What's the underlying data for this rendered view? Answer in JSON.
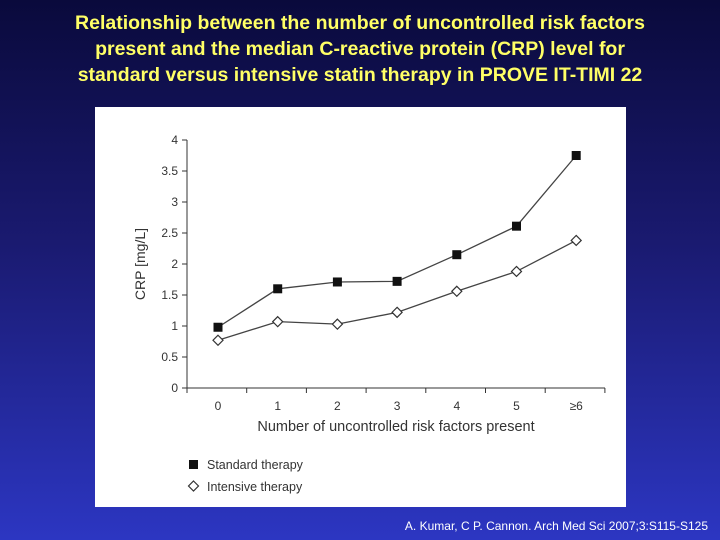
{
  "slide": {
    "title_lines": [
      "Relationship between the number of uncontrolled risk factors",
      "present and the median C-reactive protein (CRP) level for",
      "standard versus intensive statin therapy in PROVE IT-TIMI 22"
    ],
    "citation": "A. Kumar, C P. Cannon. Arch Med Sci 2007;3:S115-S125"
  },
  "colors": {
    "title": "#ffff66",
    "standard_series": "#111111",
    "intensive_series": "#333333"
  },
  "chart_data": {
    "type": "line",
    "title": "",
    "xlabel": "Number of uncontrolled risk factors present",
    "ylabel": "CRP [mg/L]",
    "categories": [
      "0",
      "1",
      "2",
      "3",
      "4",
      "5",
      "≥6"
    ],
    "ylim": [
      0,
      4
    ],
    "yticks": [
      "0",
      "0.5",
      "1",
      "1.5",
      "2",
      "2.5",
      "3",
      "3.5",
      "4"
    ],
    "grid": false,
    "legend_position": "bottom-left",
    "series": [
      {
        "name": "Standard therapy",
        "marker": "filled-square",
        "values": [
          0.98,
          1.6,
          1.71,
          1.72,
          2.15,
          2.61,
          3.75
        ]
      },
      {
        "name": "Intensive therapy",
        "marker": "open-diamond",
        "values": [
          0.77,
          1.07,
          1.03,
          1.22,
          1.56,
          1.88,
          2.38
        ]
      }
    ]
  }
}
